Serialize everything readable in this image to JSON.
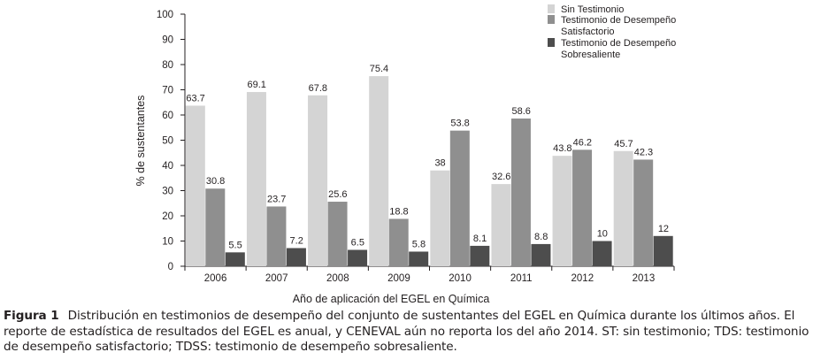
{
  "colors": {
    "sin_testimonio": "#d4d4d4",
    "tds": "#8f8f8f",
    "tdss": "#4d4d4d",
    "axis": "#231f20"
  },
  "chart_data": {
    "type": "bar",
    "title": "",
    "xlabel": "Año de aplicación del EGEL en Química",
    "ylabel": "% de sustentantes",
    "ylim": [
      0,
      100
    ],
    "yticks": [
      0,
      10,
      20,
      30,
      40,
      50,
      60,
      70,
      80,
      90,
      100
    ],
    "categories": [
      "2006",
      "2007",
      "2008",
      "2009",
      "2010",
      "2011",
      "2012",
      "2013"
    ],
    "series": [
      {
        "name": "Sin Testimonio",
        "color_key": "sin_testimonio",
        "values": [
          63.7,
          69.1,
          67.8,
          75.4,
          38,
          32.6,
          43.8,
          45.7
        ],
        "labels": [
          "63.7",
          "69.1",
          "67.8",
          "75.4",
          "38",
          "32.6",
          "43.8",
          "45.7"
        ]
      },
      {
        "name": "Testimonio de Desempeño Satisfactorio",
        "legend_lines": [
          "Testimonio de Desempeño",
          "Satisfactorio"
        ],
        "color_key": "tds",
        "values": [
          30.8,
          23.7,
          25.6,
          18.8,
          53.8,
          58.6,
          46.2,
          42.3
        ],
        "labels": [
          "30.8",
          "23.7",
          "25.6",
          "18.8",
          "53.8",
          "58.6",
          "46.2",
          "42.3"
        ]
      },
      {
        "name": "Testimonio de Desempeño Sobresaliente",
        "legend_lines": [
          "Testimonio de Desempeño",
          "Sobresaliente"
        ],
        "color_key": "tdss",
        "values": [
          5.5,
          7.2,
          6.5,
          5.8,
          8.1,
          8.8,
          10,
          12
        ],
        "labels": [
          "5.5",
          "7.2",
          "6.5",
          "5.8",
          "8.1",
          "8.8",
          "10",
          "12"
        ]
      }
    ],
    "legend_position": "top-right",
    "grid": false
  },
  "caption": {
    "label": "Figura 1",
    "text": "Distribución en testimonios de desempeño del conjunto de sustentantes del EGEL en Química durante los últimos años. El reporte de estadística de resultados del EGEL es anual, y CENEVAL aún no reporta los del año 2014. ST: sin testimonio; TDS: testimonio de desempeño satisfactorio; TDSS: testimonio de desempeño sobresaliente."
  }
}
